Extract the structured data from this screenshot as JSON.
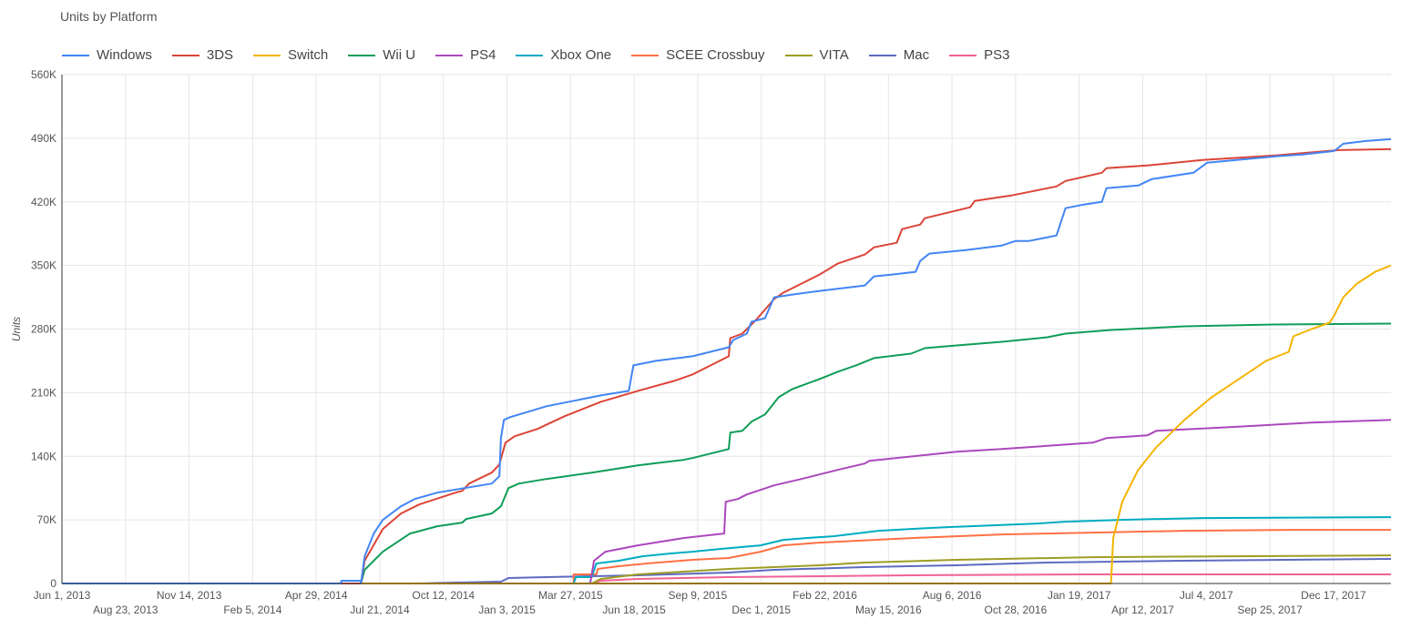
{
  "chart_data": {
    "type": "line",
    "title": "Units by Platform",
    "xlabel": "",
    "ylabel": "Units",
    "x_unit": "days since Jun 1, 2013",
    "xlim": [
      0,
      1756
    ],
    "ylim": [
      0,
      560000
    ],
    "y_ticks": [
      0,
      70000,
      140000,
      210000,
      280000,
      350000,
      420000,
      490000,
      560000
    ],
    "y_tick_labels": [
      "0",
      "70K",
      "140K",
      "210K",
      "280K",
      "350K",
      "420K",
      "490K",
      "560K"
    ],
    "x_tick_days": [
      0,
      84,
      168,
      252,
      336,
      420,
      504,
      588,
      672,
      756,
      840,
      924,
      1008,
      1092,
      1176,
      1260,
      1344,
      1428,
      1512,
      1596,
      1680
    ],
    "x_tick_labels": [
      "Jun 1, 2013",
      "Aug 23, 2013",
      "Nov 14, 2013",
      "Feb 5, 2014",
      "Apr 29, 2014",
      "Jul 21, 2014",
      "Oct 12, 2014",
      "Jan 3, 2015",
      "Mar 27, 2015",
      "Jun 18, 2015",
      "Sep 9, 2015",
      "Dec 1, 2015",
      "Feb 22, 2016",
      "May 15, 2016",
      "Aug 6, 2016",
      "Oct 28, 2016",
      "Jan 19, 2017",
      "Apr 12, 2017",
      "Jul 4, 2017",
      "Sep 25, 2017",
      "Dec 17, 2017"
    ],
    "grid": true,
    "legend_position": "top",
    "value_unit": "thousand units",
    "series": [
      {
        "name": "Windows",
        "color": "#4285f4",
        "points": [
          [
            0,
            0
          ],
          [
            369,
            0
          ],
          [
            369,
            3
          ],
          [
            395,
            3
          ],
          [
            395,
            0
          ],
          [
            400,
            30
          ],
          [
            412,
            55
          ],
          [
            424,
            70
          ],
          [
            448,
            85
          ],
          [
            466,
            93
          ],
          [
            496,
            100
          ],
          [
            532,
            105
          ],
          [
            568,
            110
          ],
          [
            578,
            118
          ],
          [
            580,
            160
          ],
          [
            584,
            180
          ],
          [
            592,
            183
          ],
          [
            640,
            195
          ],
          [
            688,
            203
          ],
          [
            712,
            207
          ],
          [
            749,
            212
          ],
          [
            755,
            240
          ],
          [
            785,
            245
          ],
          [
            833,
            250
          ],
          [
            881,
            260
          ],
          [
            887,
            268
          ],
          [
            905,
            275
          ],
          [
            911,
            288
          ],
          [
            929,
            292
          ],
          [
            941,
            315
          ],
          [
            965,
            318
          ],
          [
            1001,
            322
          ],
          [
            1061,
            328
          ],
          [
            1073,
            338
          ],
          [
            1097,
            340
          ],
          [
            1128,
            343
          ],
          [
            1134,
            355
          ],
          [
            1146,
            363
          ],
          [
            1194,
            367
          ],
          [
            1242,
            372
          ],
          [
            1260,
            377
          ],
          [
            1278,
            377
          ],
          [
            1314,
            383
          ],
          [
            1326,
            413
          ],
          [
            1350,
            417
          ],
          [
            1374,
            420
          ],
          [
            1380,
            435
          ],
          [
            1422,
            438
          ],
          [
            1440,
            445
          ],
          [
            1495,
            452
          ],
          [
            1513,
            463
          ],
          [
            1603,
            470
          ],
          [
            1639,
            472
          ],
          [
            1681,
            476
          ],
          [
            1693,
            484
          ],
          [
            1723,
            487
          ],
          [
            1756,
            489
          ]
        ]
      },
      {
        "name": "3DS",
        "color": "#db4437",
        "points": [
          [
            0,
            0
          ],
          [
            395,
            0
          ],
          [
            400,
            25
          ],
          [
            424,
            60
          ],
          [
            448,
            77
          ],
          [
            472,
            87
          ],
          [
            520,
            100
          ],
          [
            529,
            102
          ],
          [
            538,
            110
          ],
          [
            568,
            122
          ],
          [
            578,
            131
          ],
          [
            586,
            155
          ],
          [
            598,
            162
          ],
          [
            628,
            170
          ],
          [
            664,
            184
          ],
          [
            712,
            200
          ],
          [
            761,
            212
          ],
          [
            809,
            223
          ],
          [
            833,
            230
          ],
          [
            881,
            250
          ],
          [
            883,
            270
          ],
          [
            899,
            275
          ],
          [
            917,
            290
          ],
          [
            941,
            313
          ],
          [
            953,
            320
          ],
          [
            977,
            330
          ],
          [
            1001,
            340
          ],
          [
            1025,
            352
          ],
          [
            1061,
            362
          ],
          [
            1073,
            370
          ],
          [
            1103,
            375
          ],
          [
            1110,
            390
          ],
          [
            1134,
            395
          ],
          [
            1140,
            402
          ],
          [
            1170,
            408
          ],
          [
            1200,
            414
          ],
          [
            1206,
            421
          ],
          [
            1254,
            427
          ],
          [
            1314,
            437
          ],
          [
            1326,
            443
          ],
          [
            1374,
            452
          ],
          [
            1380,
            457
          ],
          [
            1434,
            460
          ],
          [
            1507,
            466
          ],
          [
            1603,
            471
          ],
          [
            1687,
            477
          ],
          [
            1756,
            478
          ]
        ]
      },
      {
        "name": "Switch",
        "color": "#f4b400",
        "points": [
          [
            0,
            0
          ],
          [
            1386,
            0
          ],
          [
            1389,
            50
          ],
          [
            1401,
            90
          ],
          [
            1422,
            125
          ],
          [
            1446,
            150
          ],
          [
            1483,
            180
          ],
          [
            1519,
            205
          ],
          [
            1555,
            225
          ],
          [
            1591,
            245
          ],
          [
            1621,
            255
          ],
          [
            1627,
            272
          ],
          [
            1651,
            280
          ],
          [
            1675,
            287
          ],
          [
            1681,
            295
          ],
          [
            1693,
            315
          ],
          [
            1711,
            330
          ],
          [
            1735,
            343
          ],
          [
            1756,
            350
          ]
        ]
      },
      {
        "name": "Wii U",
        "color": "#0f9d58",
        "points": [
          [
            0,
            0
          ],
          [
            395,
            0
          ],
          [
            400,
            15
          ],
          [
            424,
            35
          ],
          [
            460,
            55
          ],
          [
            496,
            63
          ],
          [
            529,
            67
          ],
          [
            534,
            71
          ],
          [
            568,
            77
          ],
          [
            580,
            85
          ],
          [
            590,
            105
          ],
          [
            604,
            110
          ],
          [
            640,
            115
          ],
          [
            700,
            122
          ],
          [
            761,
            130
          ],
          [
            821,
            136
          ],
          [
            833,
            138
          ],
          [
            881,
            148
          ],
          [
            883,
            166
          ],
          [
            899,
            168
          ],
          [
            911,
            178
          ],
          [
            929,
            186
          ],
          [
            947,
            205
          ],
          [
            965,
            214
          ],
          [
            1001,
            225
          ],
          [
            1025,
            233
          ],
          [
            1049,
            240
          ],
          [
            1073,
            248
          ],
          [
            1122,
            253
          ],
          [
            1140,
            259
          ],
          [
            1182,
            262
          ],
          [
            1242,
            266
          ],
          [
            1302,
            271
          ],
          [
            1326,
            275
          ],
          [
            1386,
            279
          ],
          [
            1483,
            283
          ],
          [
            1603,
            285
          ],
          [
            1756,
            286
          ]
        ]
      },
      {
        "name": "PS4",
        "color": "#ab47bc",
        "points": [
          [
            0,
            0
          ],
          [
            698,
            0
          ],
          [
            703,
            25
          ],
          [
            718,
            35
          ],
          [
            761,
            42
          ],
          [
            821,
            50
          ],
          [
            875,
            55
          ],
          [
            877,
            90
          ],
          [
            893,
            93
          ],
          [
            905,
            98
          ],
          [
            941,
            108
          ],
          [
            977,
            115
          ],
          [
            1025,
            125
          ],
          [
            1061,
            132
          ],
          [
            1067,
            135
          ],
          [
            1182,
            145
          ],
          [
            1242,
            148
          ],
          [
            1362,
            155
          ],
          [
            1380,
            160
          ],
          [
            1434,
            163
          ],
          [
            1446,
            168
          ],
          [
            1543,
            172
          ],
          [
            1651,
            177
          ],
          [
            1756,
            180
          ]
        ]
      },
      {
        "name": "Xbox One",
        "color": "#00acc1",
        "points": [
          [
            0,
            0
          ],
          [
            676,
            0
          ],
          [
            679,
            7
          ],
          [
            700,
            7
          ],
          [
            706,
            22
          ],
          [
            736,
            25
          ],
          [
            767,
            30
          ],
          [
            803,
            33
          ],
          [
            833,
            35
          ],
          [
            869,
            38
          ],
          [
            923,
            42
          ],
          [
            953,
            48
          ],
          [
            983,
            50
          ],
          [
            1019,
            52
          ],
          [
            1049,
            55
          ],
          [
            1079,
            58
          ],
          [
            1122,
            60
          ],
          [
            1170,
            62
          ],
          [
            1230,
            64
          ],
          [
            1290,
            66
          ],
          [
            1326,
            68
          ],
          [
            1398,
            70
          ],
          [
            1507,
            72
          ],
          [
            1756,
            73
          ]
        ]
      },
      {
        "name": "SCEE Crossbuy",
        "color": "#ff7043",
        "points": [
          [
            0,
            0
          ],
          [
            676,
            0
          ],
          [
            676,
            10
          ],
          [
            706,
            10
          ],
          [
            708,
            16
          ],
          [
            736,
            19
          ],
          [
            773,
            22
          ],
          [
            803,
            24
          ],
          [
            833,
            26
          ],
          [
            881,
            28
          ],
          [
            923,
            35
          ],
          [
            953,
            42
          ],
          [
            1001,
            45
          ],
          [
            1049,
            47
          ],
          [
            1122,
            50
          ],
          [
            1182,
            52
          ],
          [
            1242,
            54
          ],
          [
            1362,
            56
          ],
          [
            1483,
            58
          ],
          [
            1627,
            59
          ],
          [
            1756,
            59
          ]
        ]
      },
      {
        "name": "VITA",
        "color": "#9e9d24",
        "points": [
          [
            0,
            0
          ],
          [
            700,
            0
          ],
          [
            712,
            5
          ],
          [
            761,
            10
          ],
          [
            881,
            16
          ],
          [
            1001,
            20
          ],
          [
            1061,
            23
          ],
          [
            1182,
            26
          ],
          [
            1362,
            29
          ],
          [
            1543,
            30
          ],
          [
            1756,
            31
          ]
        ]
      },
      {
        "name": "Mac",
        "color": "#5c6bc0",
        "points": [
          [
            0,
            0
          ],
          [
            472,
            0
          ],
          [
            520,
            1
          ],
          [
            580,
            2
          ],
          [
            590,
            6
          ],
          [
            640,
            7
          ],
          [
            700,
            8
          ],
          [
            761,
            9
          ],
          [
            881,
            12
          ],
          [
            941,
            15
          ],
          [
            1061,
            18
          ],
          [
            1182,
            20
          ],
          [
            1302,
            23
          ],
          [
            1483,
            25
          ],
          [
            1756,
            27
          ]
        ]
      },
      {
        "name": "PS3",
        "color": "#f06292",
        "points": [
          [
            0,
            0
          ],
          [
            700,
            0
          ],
          [
            712,
            3
          ],
          [
            761,
            5
          ],
          [
            881,
            7
          ],
          [
            1001,
            8
          ],
          [
            1122,
            9
          ],
          [
            1362,
            10
          ],
          [
            1756,
            10
          ]
        ]
      }
    ]
  }
}
